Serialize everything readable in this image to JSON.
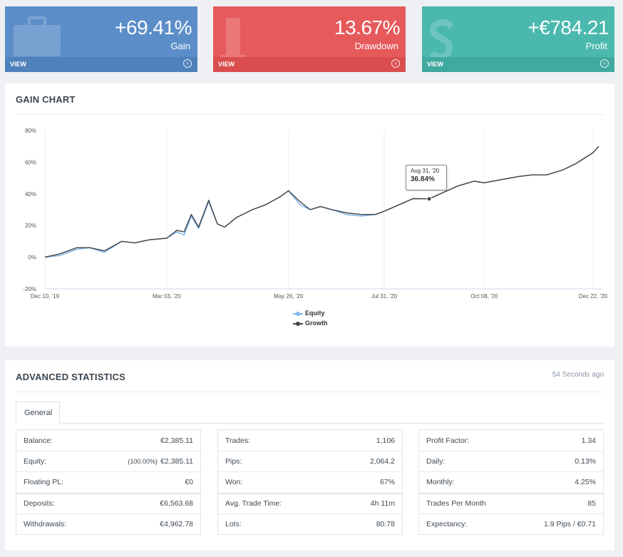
{
  "tiles": [
    {
      "value": "+69.41%",
      "label": "Gain",
      "footer": "VIEW",
      "icon": "briefcase-icon"
    },
    {
      "value": "13.67%",
      "label": "Drawdown",
      "footer": "VIEW",
      "icon": "digit-icon"
    },
    {
      "value": "+€784.21",
      "label": "Profit",
      "footer": "VIEW",
      "icon": "dollar-icon"
    }
  ],
  "gain_chart": {
    "title": "GAIN CHART",
    "tooltip": {
      "date": "Aug 31, '20",
      "value": "36.84%"
    }
  },
  "chart_data": {
    "type": "line",
    "title": "",
    "xlabel": "",
    "ylabel": "",
    "x_tick_labels": [
      "Dec 10, '19",
      "Mar 03, '20",
      "May 26, '20",
      "Jul 31, '20",
      "Oct 08, '20",
      "Dec 22, '20"
    ],
    "y_tick_labels": [
      "80%",
      "60%",
      "40%",
      "20%",
      "0%",
      "-20%"
    ],
    "ylim": [
      -20,
      80
    ],
    "grid": "vertical",
    "legend_position": "bottom-center",
    "x_dates": [
      "2019-12-10",
      "2019-12-20",
      "2020-01-01",
      "2020-01-10",
      "2020-01-20",
      "2020-02-01",
      "2020-02-10",
      "2020-02-20",
      "2020-03-03",
      "2020-03-10",
      "2020-03-15",
      "2020-03-20",
      "2020-03-25",
      "2020-04-01",
      "2020-04-07",
      "2020-04-12",
      "2020-04-20",
      "2020-05-01",
      "2020-05-10",
      "2020-05-20",
      "2020-05-26",
      "2020-06-03",
      "2020-06-10",
      "2020-06-17",
      "2020-06-25",
      "2020-07-05",
      "2020-07-15",
      "2020-07-25",
      "2020-07-31",
      "2020-08-10",
      "2020-08-20",
      "2020-08-31",
      "2020-09-10",
      "2020-09-20",
      "2020-10-01",
      "2020-10-08",
      "2020-10-20",
      "2020-11-01",
      "2020-11-10",
      "2020-11-20",
      "2020-12-01",
      "2020-12-10",
      "2020-12-22",
      "2020-12-26"
    ],
    "series": [
      {
        "name": "Equity",
        "color": "#7cb5ec",
        "values": [
          0,
          1,
          5,
          6,
          3,
          10,
          9,
          11,
          12,
          16,
          14,
          26,
          18,
          35,
          21,
          19,
          25,
          30,
          33,
          38,
          42,
          33,
          30,
          32,
          30,
          27,
          26,
          27,
          29,
          33,
          37,
          36.84,
          41,
          45,
          48,
          47,
          49,
          51,
          52,
          52,
          55,
          59,
          66,
          70
        ]
      },
      {
        "name": "Growth",
        "color": "#434348",
        "values": [
          0,
          2,
          6,
          6,
          4,
          10,
          9,
          11,
          12,
          17,
          16,
          27,
          19,
          36,
          21,
          19,
          25,
          30,
          33,
          38,
          42,
          35,
          30,
          32,
          30,
          28,
          27,
          27,
          29,
          33,
          37,
          36.84,
          41,
          45,
          48,
          47,
          49,
          51,
          52,
          52,
          55,
          59,
          66,
          70
        ]
      }
    ]
  },
  "stats": {
    "title": "ADVANCED STATISTICS",
    "updated": "54 Seconds ago",
    "tab": "General",
    "columns": [
      [
        {
          "label": "Balance:",
          "value": "€2,385.11"
        },
        {
          "label": "Equity:",
          "note": "(100.00%)",
          "value": "€2,385.11"
        },
        {
          "label": "Floating PL:",
          "value": "€0"
        },
        {
          "label": "Deposits:",
          "value": "€6,563.68"
        },
        {
          "label": "Withdrawals:",
          "value": "€4,962.78"
        }
      ],
      [
        {
          "label": "Trades:",
          "value": "1,106"
        },
        {
          "label": "Pips:",
          "value": "2,064.2"
        },
        {
          "label": "Won:",
          "value": "67%"
        },
        {
          "label": "Avg. Trade Time:",
          "value": "4h 11m"
        },
        {
          "label": "Lots:",
          "value": "80.78"
        }
      ],
      [
        {
          "label": "Profit Factor:",
          "value": "1.34"
        },
        {
          "label": "Daily:",
          "value": "0.13%"
        },
        {
          "label": "Monthly:",
          "value": "4.25%"
        },
        {
          "label": "Trades Per Month",
          "value": "85"
        },
        {
          "label": "Expectancy:",
          "value": "1.9 Pips / €0.71"
        }
      ]
    ]
  }
}
